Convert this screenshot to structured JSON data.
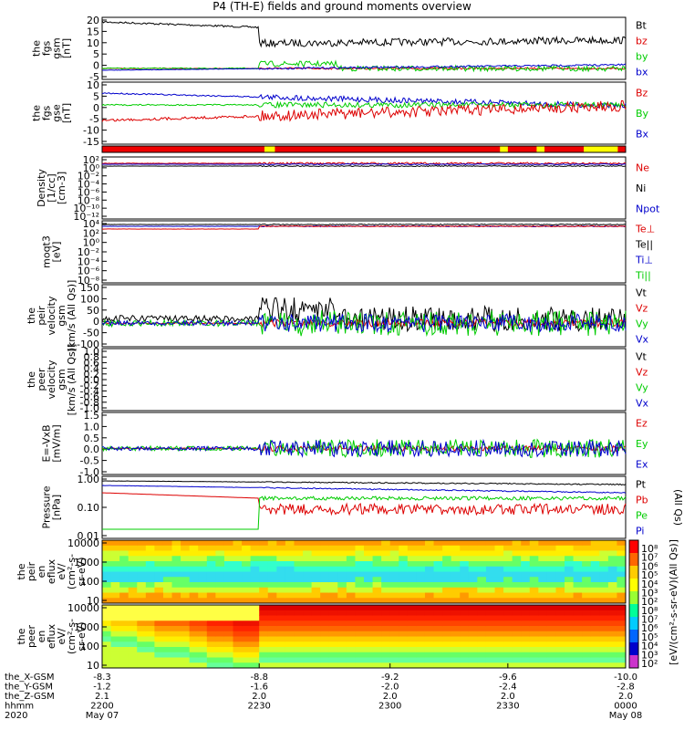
{
  "title": "P4 (TH-E) fields and ground moments overview",
  "colors": {
    "black": "#000000",
    "red": "#dd0000",
    "green": "#00cc00",
    "blue": "#0000cc"
  },
  "panels": [
    {
      "id": "fgs-gsm",
      "ylabel": [
        "the",
        "fgs",
        "gsm",
        "[nT]"
      ],
      "ticks": [
        "20",
        "15",
        "10",
        "5",
        "0",
        "-5"
      ],
      "legend": [
        {
          "label": "Bt",
          "color": "black"
        },
        {
          "label": "bz",
          "color": "red"
        },
        {
          "label": "by",
          "color": "green"
        },
        {
          "label": "bx",
          "color": "blue"
        }
      ]
    },
    {
      "id": "fgs-gse",
      "ylabel": [
        "the",
        "fgs",
        "gse",
        "[nT]"
      ],
      "ticks": [
        "10",
        "5",
        "0",
        "-5",
        "-10",
        "-15"
      ],
      "legend": [
        {
          "label": "Bz",
          "color": "red"
        },
        {
          "label": "By",
          "color": "green"
        },
        {
          "label": "Bx",
          "color": "blue"
        }
      ]
    },
    {
      "id": "mode-bar"
    },
    {
      "id": "density",
      "ylabel": [
        "Density",
        "[1/cc]",
        "[cm-3]"
      ],
      "ticks": [
        "10²",
        "10⁰",
        "10⁻²",
        "10⁻⁴",
        "10⁻⁶",
        "10⁻⁸",
        "10⁻¹⁰",
        "10⁻¹²"
      ],
      "legend": [
        {
          "label": "Ne",
          "color": "red"
        },
        {
          "label": "Ni",
          "color": "black"
        },
        {
          "label": "Npot",
          "color": "blue"
        }
      ]
    },
    {
      "id": "temperature",
      "ylabel": [
        "moqt3",
        "[eV]"
      ],
      "ticks": [
        "10⁴",
        "10²",
        "10⁰",
        "10⁻²",
        "10⁻⁴",
        "10⁻⁶",
        "10⁻⁸"
      ],
      "legend": [
        {
          "label": "Te⊥",
          "color": "red"
        },
        {
          "label": "Te||",
          "color": "black"
        },
        {
          "label": "Ti⊥",
          "color": "blue"
        },
        {
          "label": "Ti||",
          "color": "green"
        }
      ]
    },
    {
      "id": "peir-velocity",
      "ylabel": [
        "the",
        "peir",
        "velocity",
        "gsm",
        "[km/s (All Qs)]"
      ],
      "ticks": [
        "150",
        "100",
        "50",
        "0",
        "-50",
        "-100"
      ],
      "legend": [
        {
          "label": "Vt",
          "color": "black"
        },
        {
          "label": "Vz",
          "color": "red"
        },
        {
          "label": "Vy",
          "color": "green"
        },
        {
          "label": "Vx",
          "color": "blue"
        }
      ]
    },
    {
      "id": "peer-velocity",
      "ylabel": [
        "the",
        "peer",
        "velocity",
        "gsm",
        "[km/s (All Qs)]"
      ],
      "ticks": [
        "1.0",
        "0.8",
        "0.6",
        "0.4",
        "0.2",
        "0.0",
        "-0.2",
        "-0.4",
        "-0.6",
        "-0.8",
        "-1.0"
      ],
      "legend": [
        {
          "label": "Vt",
          "color": "black"
        },
        {
          "label": "Vz",
          "color": "red"
        },
        {
          "label": "Vy",
          "color": "green"
        },
        {
          "label": "Vx",
          "color": "blue"
        }
      ]
    },
    {
      "id": "efield",
      "ylabel": [
        "E=-VxB",
        "[mV/m]"
      ],
      "ticks": [
        "1.5",
        "1.0",
        "0.5",
        "0.0",
        "-0.5",
        "-1.0"
      ],
      "legend": [
        {
          "label": "Ez",
          "color": "red"
        },
        {
          "label": "Ey",
          "color": "green"
        },
        {
          "label": "Ex",
          "color": "blue"
        }
      ]
    },
    {
      "id": "pressure",
      "ylabel": [
        "Pressure",
        "[nPa]"
      ],
      "ticks": [
        "1.00",
        "0.10",
        "0.01"
      ],
      "legend": [
        {
          "label": "Pt",
          "color": "black"
        },
        {
          "label": "Pb",
          "color": "red"
        },
        {
          "label": "Pe",
          "color": "green"
        },
        {
          "label": "Pi",
          "color": "blue"
        }
      ],
      "side_note": "(All Qs)"
    },
    {
      "id": "peir-eflux",
      "ylabel": [
        "the",
        "peir",
        "en",
        "eflux",
        "eV/",
        "(cm²-s-",
        "sr-eV)"
      ],
      "ticks": [
        "10000",
        "1000",
        "100",
        "10"
      ]
    },
    {
      "id": "peer-eflux",
      "ylabel": [
        "the",
        "peer",
        "en",
        "eflux",
        "eV/",
        "(cm²-s-",
        "sr-eV)"
      ],
      "ticks": [
        "10000",
        "1000",
        "100",
        "10"
      ]
    }
  ],
  "colorbar": {
    "label": "[eV/(cm²-s-sr-eV)]",
    "side_label": "[eV/(cm²-s-sr-eV)(All Qs)]",
    "upper_ticks": [
      "10⁸",
      "10⁷",
      "10⁶",
      "10⁵",
      "10⁴",
      "10³",
      "10²"
    ],
    "lower_ticks": [
      "10⁸",
      "10⁷",
      "10⁶",
      "10⁵",
      "10⁴",
      "10³",
      "10²"
    ]
  },
  "ephemeris": {
    "rows": [
      {
        "label": "the_X-GSM",
        "values": [
          "-8.3",
          "-8.8",
          "-9.2",
          "-9.6",
          "-10.0"
        ]
      },
      {
        "label": "the_Y-GSM",
        "values": [
          "-1.2",
          "-1.6",
          "-2.0",
          "-2.4",
          "-2.8"
        ]
      },
      {
        "label": "the_Z-GSM",
        "values": [
          "2.1",
          "2.0",
          "2.0",
          "2.0",
          "2.0"
        ]
      },
      {
        "label": "hhmm",
        "values": [
          "2200",
          "2230",
          "2300",
          "2330",
          "0000"
        ]
      },
      {
        "label": "2020",
        "values": [
          "May 07",
          "",
          "",
          "",
          "May 08"
        ]
      }
    ]
  },
  "chart_data": {
    "type": "line",
    "title": "P4 (TH-E) fields and ground moments overview",
    "x_ticks": [
      "2200",
      "2230",
      "2300",
      "2330",
      "0000"
    ],
    "series": [
      {
        "name": "Bt",
        "panel": "fgs-gsm",
        "values": [
          20,
          16,
          12,
          13,
          14,
          13,
          12,
          11,
          10,
          9
        ]
      },
      {
        "name": "bz",
        "panel": "fgs-gsm",
        "values": [
          -1,
          -1,
          -0.5,
          0,
          0,
          0,
          0,
          0,
          0,
          0.5
        ]
      },
      {
        "name": "by",
        "panel": "fgs-gsm",
        "values": [
          0,
          0,
          0.5,
          2,
          3,
          2,
          1,
          1,
          0.5,
          0.5
        ]
      },
      {
        "name": "bx",
        "panel": "fgs-gsm",
        "values": [
          -1,
          -1,
          -1,
          0,
          1,
          0,
          0,
          0,
          0.5,
          1
        ]
      },
      {
        "name": "Bz",
        "panel": "fgs-gse",
        "values": [
          -6,
          -6,
          -5,
          -8,
          -2,
          -1,
          0,
          0,
          1,
          1
        ]
      },
      {
        "name": "By",
        "panel": "fgs-gse",
        "values": [
          3,
          3,
          2,
          1,
          3,
          3,
          3,
          2,
          2,
          2
        ]
      },
      {
        "name": "Bx",
        "panel": "fgs-gse",
        "values": [
          6,
          7,
          7,
          6,
          3,
          2,
          1,
          0,
          0,
          0
        ]
      },
      {
        "name": "Vt",
        "panel": "peir-velocity",
        "values": [
          15,
          18,
          20,
          60,
          70,
          40,
          30,
          30,
          20,
          20
        ]
      },
      {
        "name": "Vz",
        "panel": "peir-velocity",
        "values": [
          0,
          0,
          2,
          5,
          5,
          3,
          2,
          2,
          1,
          0
        ]
      },
      {
        "name": "Vy",
        "panel": "peir-velocity",
        "values": [
          5,
          5,
          8,
          30,
          20,
          10,
          5,
          0,
          0,
          0
        ]
      },
      {
        "name": "Vx",
        "panel": "peir-velocity",
        "values": [
          5,
          5,
          10,
          40,
          30,
          20,
          10,
          10,
          5,
          5
        ]
      },
      {
        "name": "Ez",
        "panel": "efield",
        "values": [
          0,
          0,
          0,
          0.1,
          0,
          0,
          0,
          0,
          0,
          0
        ]
      },
      {
        "name": "Ey",
        "panel": "efield",
        "values": [
          0.1,
          0.1,
          0.1,
          0.3,
          0.2,
          0.1,
          0.1,
          0.1,
          0.1,
          0.1
        ]
      },
      {
        "name": "Ex",
        "panel": "efield",
        "values": [
          0,
          0.1,
          0.1,
          0.2,
          0.1,
          0.1,
          0,
          0,
          0,
          0
        ]
      },
      {
        "name": "Pt",
        "panel": "pressure",
        "values": [
          0.9,
          0.85,
          0.75,
          0.8,
          0.8,
          0.7,
          0.7,
          0.65,
          0.6,
          0.55
        ]
      },
      {
        "name": "Pb",
        "panel": "pressure",
        "values": [
          0.3,
          0.25,
          0.2,
          0.05,
          0.06,
          0.05,
          0.05,
          0.04,
          0.04,
          0.04
        ]
      },
      {
        "name": "Pe",
        "panel": "pressure",
        "values": [
          0.02,
          0.02,
          0.02,
          0.05,
          0.15,
          0.15,
          0.12,
          0.1,
          0.1,
          0.08
        ]
      },
      {
        "name": "Pi",
        "panel": "pressure",
        "values": [
          0.6,
          0.55,
          0.5,
          0.55,
          0.6,
          0.55,
          0.5,
          0.45,
          0.4,
          0.4
        ]
      }
    ]
  }
}
